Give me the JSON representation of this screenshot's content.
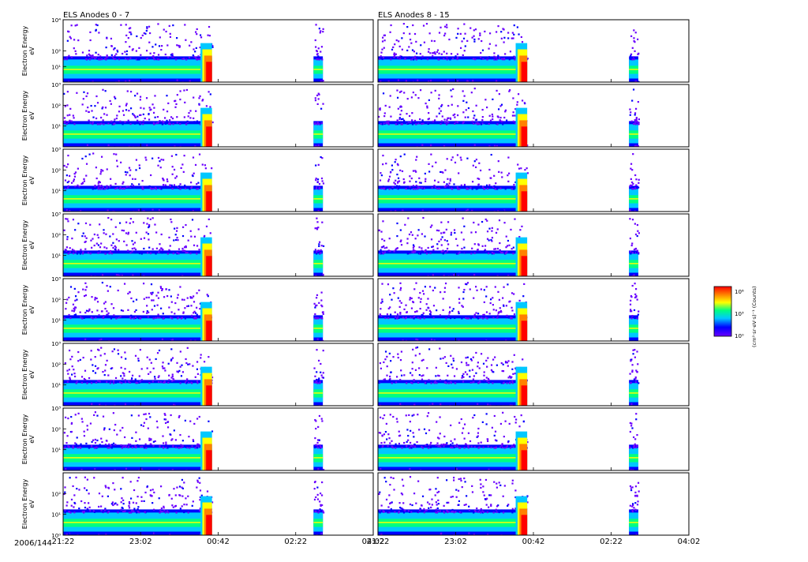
{
  "figure": {
    "date_label": "2006/144",
    "ylabel_line1": "Electron Energy",
    "ylabel_line2": "eV",
    "colorbar_label": "(cm²·sr·eV·s)⁻¹ (Counts)",
    "colorbar_ticks": [
      "10⁰",
      "10³",
      "10⁶"
    ]
  },
  "chart_data": {
    "type": "heatmap",
    "title_left": "ELS Anodes 0 - 7",
    "title_right": "ELS Anodes 8 - 15",
    "xlabel": "",
    "ylabel": "Electron Energy eV",
    "x_ticks": [
      "21:22",
      "23:02",
      "00:42",
      "02:22",
      "04:02"
    ],
    "x_range_hours": [
      21.3667,
      28.0333
    ],
    "y_scale": "log",
    "y_range_ev": [
      1,
      10000
    ],
    "y_ticks_top_panel": [
      "10¹",
      "10²",
      "10⁴"
    ],
    "y_ticks": [
      "10¹",
      "10²",
      "10³"
    ],
    "y_ticks_bottom_panel": [
      "10⁰",
      "10¹",
      "10²"
    ],
    "anodes_per_column": 8,
    "data_segments_hours": [
      [
        21.3667,
        24.5667
      ],
      [
        26.75,
        26.95
      ]
    ],
    "background_band_ev": [
      3,
      20
    ],
    "burst_near_hours": 24.4,
    "colorscale": [
      "#6a00ff",
      "#0000ff",
      "#00c8ff",
      "#00ff80",
      "#ffff00",
      "#ff8000",
      "#ff0000"
    ]
  }
}
